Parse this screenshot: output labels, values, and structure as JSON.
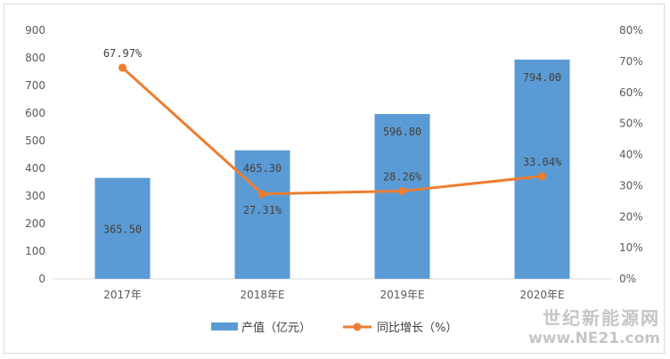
{
  "chart_data": {
    "type": "bar",
    "categories": [
      "2017年",
      "2018年E",
      "2019年E",
      "2020年E"
    ],
    "series": [
      {
        "name": "产值（亿元）",
        "type": "bar",
        "axis": "left",
        "color": "#5b9bd5",
        "values": [
          365.5,
          465.3,
          596.8,
          794.0
        ],
        "labels": [
          "365.50",
          "465.30",
          "596.80",
          "794.00"
        ]
      },
      {
        "name": "同比增长（%）",
        "type": "line",
        "axis": "right",
        "color": "#ed7d31",
        "values": [
          67.97,
          27.31,
          28.26,
          33.04
        ],
        "labels": [
          "67.97%",
          "27.31%",
          "28.26%",
          "33.04%"
        ]
      }
    ],
    "y_left": {
      "ylim": [
        0,
        900
      ],
      "ticks": [
        "0",
        "100",
        "200",
        "300",
        "400",
        "500",
        "600",
        "700",
        "800",
        "900"
      ]
    },
    "y_right": {
      "ylim": [
        0,
        80
      ],
      "ticks": [
        "0%",
        "10%",
        "20%",
        "30%",
        "40%",
        "50%",
        "60%",
        "70%",
        "80%"
      ]
    },
    "grid": false,
    "legend": "bottom-center"
  },
  "watermark": {
    "title": "世纪新能源网",
    "url": "www.NE21.com"
  }
}
